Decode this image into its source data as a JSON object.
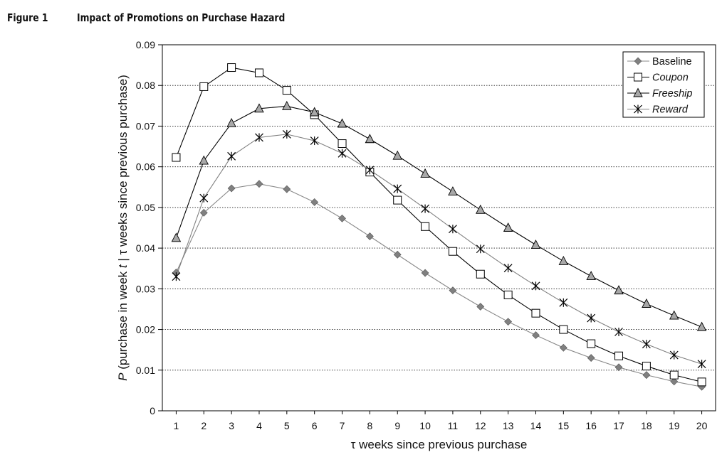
{
  "figure": {
    "label": "Figure 1",
    "title": "Impact of Promotions on Purchase Hazard"
  },
  "chart_data": {
    "type": "line",
    "title": "Impact of Promotions on Purchase Hazard",
    "xlabel": "τ  weeks since previous purchase",
    "ylabel": "P (purchase in week t | τ weeks since previous purchase)",
    "x": [
      1,
      2,
      3,
      4,
      5,
      6,
      7,
      8,
      9,
      10,
      11,
      12,
      13,
      14,
      15,
      16,
      17,
      18,
      19,
      20
    ],
    "xlim": [
      0.5,
      20.5
    ],
    "ylim": [
      0,
      0.09
    ],
    "yticks": [
      "0",
      "0.01",
      "0.02",
      "0.03",
      "0.04",
      "0.05",
      "0.06",
      "0.07",
      "0.08",
      "0.09"
    ],
    "grid": "horizontal-dotted",
    "legend_position": "top-right",
    "series": [
      {
        "name": "Baseline",
        "italic": false,
        "marker": "diamond",
        "line_color": "#888888",
        "marker_fill": "#808080",
        "values": [
          0.034,
          0.0487,
          0.0547,
          0.0558,
          0.0545,
          0.0513,
          0.0473,
          0.0429,
          0.0384,
          0.0339,
          0.0296,
          0.0256,
          0.0219,
          0.0186,
          0.0155,
          0.013,
          0.0107,
          0.0088,
          0.0072,
          0.0059
        ]
      },
      {
        "name": "Coupon",
        "italic": true,
        "marker": "square",
        "line_color": "#000000",
        "marker_fill": "#ffffff",
        "values": [
          0.0623,
          0.0797,
          0.0844,
          0.0831,
          0.0788,
          0.0728,
          0.0657,
          0.0587,
          0.0518,
          0.0453,
          0.0392,
          0.0336,
          0.0285,
          0.024,
          0.02,
          0.0165,
          0.0135,
          0.011,
          0.0088,
          0.0071
        ]
      },
      {
        "name": "Freeship",
        "italic": true,
        "marker": "triangle",
        "line_color": "#000000",
        "marker_fill": "#a8a8a8",
        "values": [
          0.0425,
          0.0615,
          0.0707,
          0.0743,
          0.0749,
          0.0734,
          0.0706,
          0.0668,
          0.0627,
          0.0583,
          0.0539,
          0.0494,
          0.045,
          0.0408,
          0.0368,
          0.0331,
          0.0296,
          0.0263,
          0.0234,
          0.0206
        ]
      },
      {
        "name": "Reward",
        "italic": true,
        "marker": "asterisk",
        "line_color": "#808080",
        "marker_fill": "#000000",
        "values": [
          0.033,
          0.0523,
          0.0626,
          0.0672,
          0.068,
          0.0664,
          0.0633,
          0.0592,
          0.0546,
          0.0497,
          0.0447,
          0.0398,
          0.0351,
          0.0307,
          0.0266,
          0.0228,
          0.0194,
          0.0164,
          0.0137,
          0.0115
        ]
      }
    ]
  }
}
